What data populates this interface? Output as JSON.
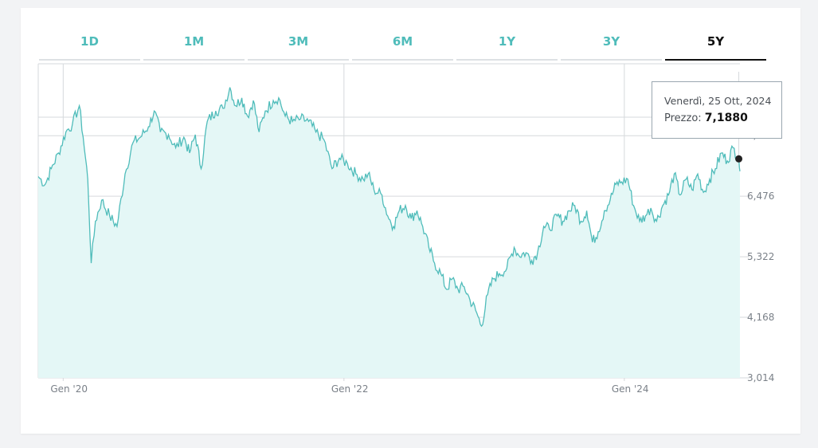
{
  "tabs": [
    {
      "label": "1D",
      "active": false
    },
    {
      "label": "1M",
      "active": false
    },
    {
      "label": "3M",
      "active": false
    },
    {
      "label": "6M",
      "active": false
    },
    {
      "label": "1Y",
      "active": false
    },
    {
      "label": "3Y",
      "active": false
    },
    {
      "label": "5Y",
      "active": true
    }
  ],
  "tooltip": {
    "date": "Venerdì, 25 Ott, 2024",
    "price_label": "Prezzo:",
    "price_value": "7,1880"
  },
  "colors": {
    "line": "#4fbcba",
    "fill": "#e4f7f6",
    "grid": "#d6d9dc",
    "axis_text": "#7a8088",
    "marker": "#222222",
    "active_tab": "#111111"
  },
  "chart_data": {
    "type": "area",
    "title": "",
    "xlabel": "",
    "ylabel": "",
    "x_range": [
      "2019-10-28",
      "2024-10-28"
    ],
    "ylim": [
      3.014,
      9.0
    ],
    "y_ticks": [
      {
        "value": 7.629,
        "label": "7,629"
      },
      {
        "value": 6.476,
        "label": "6,476"
      },
      {
        "value": 5.322,
        "label": "5,322"
      },
      {
        "value": 4.168,
        "label": "4,168"
      },
      {
        "value": 3.014,
        "label": "3,014"
      }
    ],
    "x_ticks": [
      {
        "date": "2020-01-01",
        "label": "Gen '20"
      },
      {
        "date": "2022-01-01",
        "label": "Gen '22"
      },
      {
        "date": "2024-01-01",
        "label": "Gen '24"
      }
    ],
    "grid": true,
    "series": [
      {
        "points": [
          [
            "2019-10-28",
            6.85
          ],
          [
            "2019-11-15",
            6.7
          ],
          [
            "2019-12-01",
            7.0
          ],
          [
            "2019-12-20",
            7.3
          ],
          [
            "2020-01-08",
            7.7
          ],
          [
            "2020-01-25",
            7.85
          ],
          [
            "2020-02-12",
            8.2
          ],
          [
            "2020-02-22",
            7.6
          ],
          [
            "2020-03-05",
            6.8
          ],
          [
            "2020-03-14",
            5.2
          ],
          [
            "2020-03-25",
            6.0
          ],
          [
            "2020-04-10",
            6.4
          ],
          [
            "2020-05-01",
            6.1
          ],
          [
            "2020-05-20",
            5.9
          ],
          [
            "2020-06-10",
            6.9
          ],
          [
            "2020-07-01",
            7.5
          ],
          [
            "2020-07-20",
            7.6
          ],
          [
            "2020-08-10",
            7.8
          ],
          [
            "2020-08-25",
            8.1
          ],
          [
            "2020-09-10",
            7.7
          ],
          [
            "2020-10-01",
            7.65
          ],
          [
            "2020-10-20",
            7.4
          ],
          [
            "2020-11-10",
            7.6
          ],
          [
            "2020-11-25",
            7.3
          ],
          [
            "2020-12-10",
            7.65
          ],
          [
            "2020-12-25",
            7.0
          ],
          [
            "2021-01-10",
            7.9
          ],
          [
            "2021-02-01",
            8.1
          ],
          [
            "2021-02-20",
            8.15
          ],
          [
            "2021-03-10",
            8.55
          ],
          [
            "2021-03-25",
            8.2
          ],
          [
            "2021-04-10",
            8.35
          ],
          [
            "2021-04-25",
            8.0
          ],
          [
            "2021-05-10",
            8.3
          ],
          [
            "2021-05-25",
            7.7
          ],
          [
            "2021-06-10",
            8.1
          ],
          [
            "2021-07-01",
            8.3
          ],
          [
            "2021-07-15",
            8.35
          ],
          [
            "2021-08-01",
            8.0
          ],
          [
            "2021-08-20",
            7.9
          ],
          [
            "2021-09-10",
            7.95
          ],
          [
            "2021-10-01",
            7.9
          ],
          [
            "2021-10-20",
            7.7
          ],
          [
            "2021-11-10",
            7.55
          ],
          [
            "2021-12-01",
            7.0
          ],
          [
            "2021-12-20",
            7.2
          ],
          [
            "2022-01-10",
            7.1
          ],
          [
            "2022-02-01",
            6.9
          ],
          [
            "2022-02-20",
            6.8
          ],
          [
            "2022-03-05",
            6.9
          ],
          [
            "2022-03-20",
            6.6
          ],
          [
            "2022-04-10",
            6.5
          ],
          [
            "2022-04-25",
            6.1
          ],
          [
            "2022-05-10",
            5.9
          ],
          [
            "2022-05-25",
            6.2
          ],
          [
            "2022-06-10",
            6.3
          ],
          [
            "2022-06-25",
            6.05
          ],
          [
            "2022-07-10",
            6.2
          ],
          [
            "2022-07-25",
            5.9
          ],
          [
            "2022-08-10",
            5.5
          ],
          [
            "2022-08-25",
            5.2
          ],
          [
            "2022-09-10",
            5.0
          ],
          [
            "2022-09-25",
            4.7
          ],
          [
            "2022-10-10",
            4.9
          ],
          [
            "2022-10-25",
            4.7
          ],
          [
            "2022-11-10",
            4.75
          ],
          [
            "2022-11-25",
            4.5
          ],
          [
            "2022-12-10",
            4.3
          ],
          [
            "2022-12-25",
            4.0
          ],
          [
            "2023-01-10",
            4.6
          ],
          [
            "2023-01-25",
            4.9
          ],
          [
            "2023-02-10",
            5.0
          ],
          [
            "2023-03-01",
            5.1
          ],
          [
            "2023-03-20",
            5.5
          ],
          [
            "2023-04-01",
            5.35
          ],
          [
            "2023-04-20",
            5.4
          ],
          [
            "2023-05-05",
            5.25
          ],
          [
            "2023-05-20",
            5.4
          ],
          [
            "2023-06-05",
            5.9
          ],
          [
            "2023-06-20",
            5.85
          ],
          [
            "2023-07-10",
            6.1
          ],
          [
            "2023-07-25",
            6.0
          ],
          [
            "2023-08-10",
            6.2
          ],
          [
            "2023-08-25",
            6.3
          ],
          [
            "2023-09-10",
            6.0
          ],
          [
            "2023-09-25",
            6.2
          ],
          [
            "2023-10-10",
            5.6
          ],
          [
            "2023-10-25",
            5.8
          ],
          [
            "2023-11-10",
            6.2
          ],
          [
            "2023-11-25",
            6.4
          ],
          [
            "2023-12-10",
            6.7
          ],
          [
            "2023-12-25",
            6.75
          ],
          [
            "2024-01-10",
            6.8
          ],
          [
            "2024-01-25",
            6.3
          ],
          [
            "2024-02-10",
            6.0
          ],
          [
            "2024-02-25",
            6.1
          ],
          [
            "2024-03-10",
            6.25
          ],
          [
            "2024-03-25",
            6.0
          ],
          [
            "2024-04-10",
            6.3
          ],
          [
            "2024-04-25",
            6.5
          ],
          [
            "2024-05-10",
            6.9
          ],
          [
            "2024-05-25",
            6.5
          ],
          [
            "2024-06-10",
            6.8
          ],
          [
            "2024-06-25",
            6.6
          ],
          [
            "2024-07-10",
            6.9
          ],
          [
            "2024-07-25",
            6.55
          ],
          [
            "2024-08-10",
            6.8
          ],
          [
            "2024-08-25",
            7.0
          ],
          [
            "2024-09-10",
            7.3
          ],
          [
            "2024-09-25",
            7.15
          ],
          [
            "2024-10-10",
            7.4
          ],
          [
            "2024-10-25",
            7.188
          ],
          [
            "2024-10-28",
            6.95
          ]
        ]
      }
    ],
    "highlight": {
      "date": "2024-10-25",
      "value": 7.188
    }
  }
}
